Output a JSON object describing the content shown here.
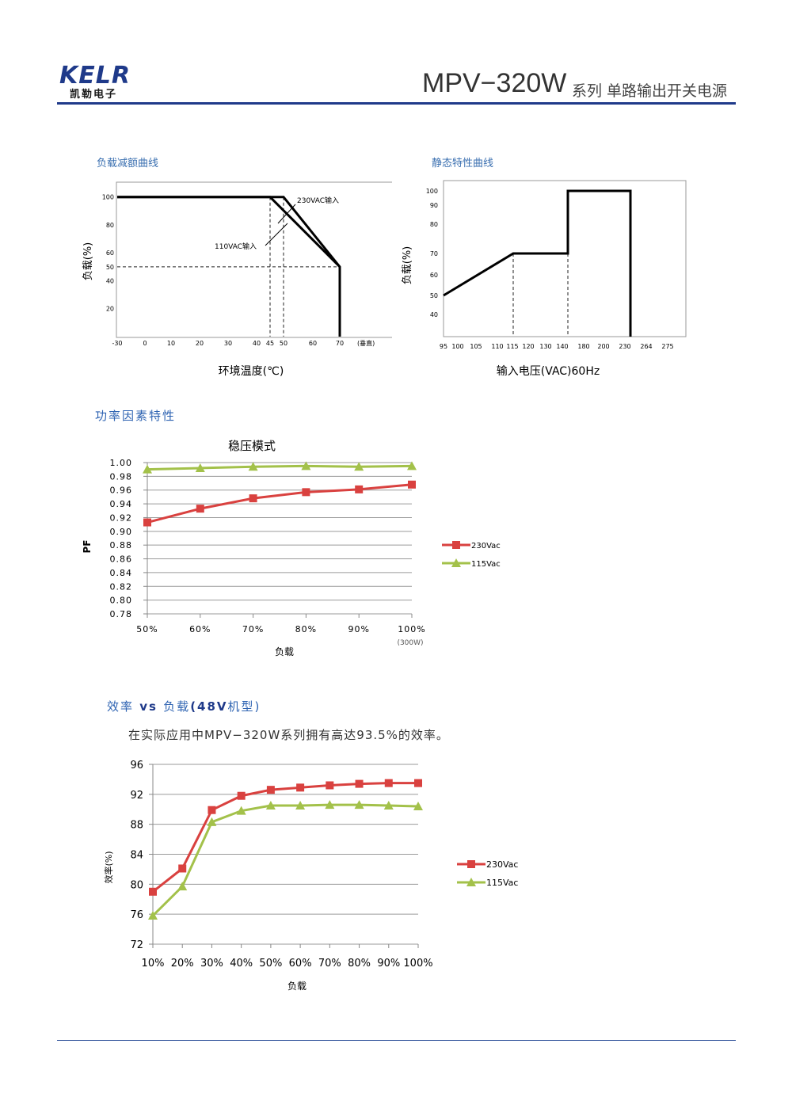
{
  "header": {
    "logo": "KELR",
    "logo_cn": "凯勒电子",
    "model": "MPV−320W",
    "subtitle": "系列  单路输出开关电源",
    "brand_color": "#1f3a8a"
  },
  "sections": {
    "derating_title": "负载减额曲线",
    "static_title": "静态特性曲线",
    "pf_title": "功率因素特性",
    "eff_title_pre": "效率",
    "eff_title_vs": " vs ",
    "eff_title_mid": "负载",
    "eff_title_model": "(48V",
    "eff_title_post": "机型)",
    "eff_note": "在实际应用中MPV−320W系列拥有高达93.5%的效率。"
  },
  "chart_data": [
    {
      "type": "line",
      "name": "derating",
      "ylabel": "负载(%)",
      "xlabel": "环境温度(℃)",
      "x_ticks": [
        "-30",
        "0",
        "10",
        "20",
        "30",
        "40",
        "45",
        "50",
        "60",
        "70"
      ],
      "x_unit_note": "(垂直)",
      "y_ticks": [
        "100",
        "80",
        "60",
        "50",
        "40",
        "20"
      ],
      "xlim": [
        -30,
        77
      ],
      "ylim": [
        0,
        107
      ],
      "series": [
        {
          "name": "230VAC输入",
          "x": [
            -30,
            50,
            70,
            70
          ],
          "y": [
            100,
            100,
            50,
            0
          ]
        },
        {
          "name": "110VAC输入",
          "x": [
            -30,
            45,
            70
          ],
          "y": [
            100,
            100,
            50
          ]
        }
      ],
      "guides": {
        "v": [
          45,
          50
        ],
        "h": 50
      }
    },
    {
      "type": "line",
      "name": "static",
      "ylabel": "负载(%)",
      "xlabel": "输入电压(VAC)60Hz",
      "x_ticks": [
        "95",
        "100",
        "105",
        "110",
        "115",
        "120",
        "130",
        "140",
        "180",
        "200",
        "230",
        "264",
        "275"
      ],
      "y_ticks": [
        "100",
        "90",
        "80",
        "70",
        "60",
        "50",
        "40"
      ],
      "series": [
        {
          "x": [
            "95",
            "115",
            "180",
            "180",
            "264",
            "264"
          ],
          "y": [
            50,
            70,
            70,
            100,
            100,
            0
          ]
        }
      ],
      "guides": {
        "v": [
          "115",
          "180"
        ]
      }
    },
    {
      "type": "line",
      "title": "稳压模式",
      "ylabel": "PF",
      "xlabel": "负载",
      "categories": [
        "50%",
        "60%",
        "70%",
        "80%",
        "90%",
        "100%"
      ],
      "x_note": "(300W)",
      "y_ticks": [
        "1.00",
        "0.98",
        "0.96",
        "0.94",
        "0.92",
        "0.90",
        "0.88",
        "0.86",
        "0.84",
        "0.82",
        "0.80",
        "0.78"
      ],
      "ylim": [
        0.78,
        1.0
      ],
      "series": [
        {
          "name": "230Vac",
          "color": "#d9413f",
          "marker": "square",
          "values": [
            0.913,
            0.933,
            0.948,
            0.957,
            0.961,
            0.968
          ]
        },
        {
          "name": "115Vac",
          "color": "#a3c14a",
          "marker": "triangle",
          "values": [
            0.99,
            0.992,
            0.994,
            0.995,
            0.994,
            0.995
          ]
        }
      ]
    },
    {
      "type": "line",
      "ylabel": "效率(%)",
      "xlabel": "负载",
      "categories": [
        "10%",
        "20%",
        "30%",
        "40%",
        "50%",
        "60%",
        "70%",
        "80%",
        "90%",
        "100%"
      ],
      "y_ticks": [
        "96",
        "92",
        "88",
        "84",
        "80",
        "76",
        "72"
      ],
      "ylim": [
        72,
        96
      ],
      "series": [
        {
          "name": "230Vac",
          "color": "#d9413f",
          "marker": "square",
          "values": [
            79.0,
            82.1,
            89.9,
            91.8,
            92.6,
            92.9,
            93.2,
            93.4,
            93.5,
            93.5
          ]
        },
        {
          "name": "115Vac",
          "color": "#a3c14a",
          "marker": "triangle",
          "values": [
            75.8,
            79.7,
            88.3,
            89.8,
            90.5,
            90.5,
            90.6,
            90.6,
            90.5,
            90.4
          ]
        }
      ]
    }
  ]
}
